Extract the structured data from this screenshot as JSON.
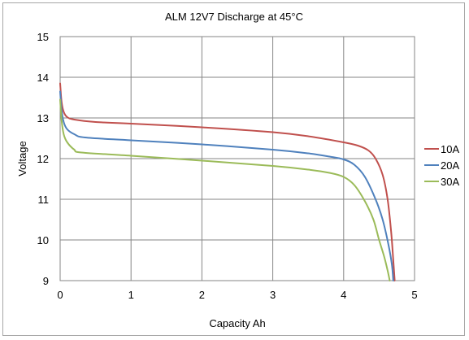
{
  "chart_data": {
    "type": "line",
    "title": "ALM 12V7 Discharge at 45°C",
    "xlabel": "Capacity Ah",
    "ylabel": "Voltage",
    "xlim": [
      0,
      5
    ],
    "ylim": [
      9,
      15
    ],
    "xticks": [
      "0",
      "1",
      "2",
      "3",
      "4",
      "5"
    ],
    "yticks": [
      "9",
      "10",
      "11",
      "12",
      "13",
      "14",
      "15"
    ],
    "grid": true,
    "legend": "right",
    "series": [
      {
        "name": "10A",
        "color": "#c0504d",
        "x": [
          0.0,
          0.02,
          0.05,
          0.1,
          0.2,
          0.5,
          1.0,
          2.0,
          3.0,
          3.5,
          4.0,
          4.2,
          4.35,
          4.45,
          4.55,
          4.62,
          4.67,
          4.7,
          4.72
        ],
        "y": [
          13.85,
          13.4,
          13.15,
          13.02,
          12.96,
          12.9,
          12.86,
          12.77,
          12.65,
          12.55,
          12.4,
          12.32,
          12.2,
          12.0,
          11.6,
          11.0,
          10.2,
          9.5,
          9.0
        ]
      },
      {
        "name": "20A",
        "color": "#4f81bd",
        "x": [
          0.0,
          0.02,
          0.05,
          0.1,
          0.2,
          0.35,
          1.0,
          2.0,
          3.0,
          3.5,
          3.8,
          4.0,
          4.15,
          4.3,
          4.45,
          4.55,
          4.63,
          4.68,
          4.7
        ],
        "y": [
          13.65,
          13.2,
          12.9,
          12.72,
          12.6,
          12.52,
          12.45,
          12.35,
          12.22,
          12.13,
          12.05,
          11.98,
          11.85,
          11.55,
          11.0,
          10.5,
          9.9,
          9.4,
          9.0
        ]
      },
      {
        "name": "30A",
        "color": "#9bbb59",
        "x": [
          0.0,
          0.02,
          0.05,
          0.1,
          0.2,
          0.3,
          1.0,
          2.0,
          3.0,
          3.5,
          3.8,
          4.0,
          4.15,
          4.3,
          4.42,
          4.5,
          4.57,
          4.62,
          4.65
        ],
        "y": [
          13.45,
          12.95,
          12.6,
          12.4,
          12.22,
          12.15,
          12.07,
          11.95,
          11.82,
          11.73,
          11.65,
          11.55,
          11.35,
          10.95,
          10.5,
          10.0,
          9.6,
          9.25,
          9.0
        ]
      }
    ]
  }
}
